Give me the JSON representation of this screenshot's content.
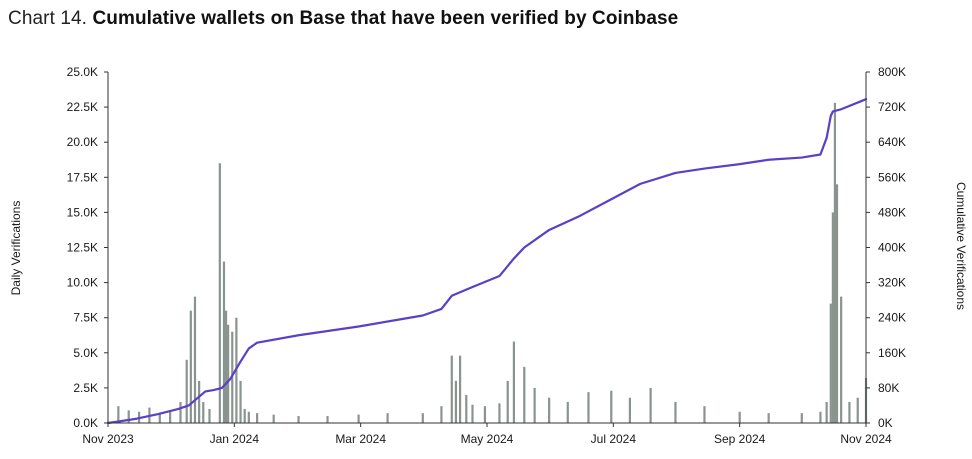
{
  "title": {
    "prefix": "Chart 14.",
    "main": "Cumulative wallets on Base that have been verified by Coinbase"
  },
  "chart_data": {
    "type": "bar+line",
    "title": "Chart 14. Cumulative wallets on Base that have been verified by Coinbase",
    "ylabel_left": "Daily Verifications",
    "ylabel_right": "Cumulative Verifications",
    "x_tick_labels": [
      "Nov 2023",
      "Jan 2024",
      "Mar 2024",
      "May 2024",
      "Jul 2024",
      "Sep 2024",
      "Nov 2024"
    ],
    "y_left_tick_labels": [
      "0.0K",
      "2.5K",
      "5.0K",
      "7.5K",
      "10.0K",
      "12.5K",
      "15.0K",
      "17.5K",
      "20.0K",
      "22.5K",
      "25.0K"
    ],
    "y_right_tick_labels": [
      "0K",
      "80K",
      "160K",
      "240K",
      "320K",
      "400K",
      "480K",
      "560K",
      "640K",
      "720K",
      "800K"
    ],
    "y_left_lim": [
      0,
      25000
    ],
    "y_right_lim": [
      0,
      800000
    ],
    "x_range": [
      "2023-11-01",
      "2024-11-01"
    ],
    "grid": false,
    "colors": {
      "bars": "#8a948f",
      "line": "#5b3fc6",
      "axis": "#333333"
    },
    "series": [
      {
        "name": "Daily Verifications",
        "type": "bar",
        "axis": "left",
        "x": [
          "2023-11-01",
          "2023-11-06",
          "2023-11-11",
          "2023-11-16",
          "2023-11-21",
          "2023-11-26",
          "2023-12-01",
          "2023-12-06",
          "2023-12-09",
          "2023-12-11",
          "2023-12-13",
          "2023-12-15",
          "2023-12-17",
          "2023-12-20",
          "2023-12-25",
          "2023-12-27",
          "2023-12-28",
          "2023-12-29",
          "2023-12-31",
          "2024-01-02",
          "2024-01-04",
          "2024-01-06",
          "2024-01-08",
          "2024-01-12",
          "2024-01-20",
          "2024-02-01",
          "2024-02-15",
          "2024-03-01",
          "2024-03-15",
          "2024-04-01",
          "2024-04-10",
          "2024-04-15",
          "2024-04-17",
          "2024-04-19",
          "2024-04-22",
          "2024-04-25",
          "2024-05-01",
          "2024-05-08",
          "2024-05-12",
          "2024-05-15",
          "2024-05-20",
          "2024-05-25",
          "2024-06-01",
          "2024-06-10",
          "2024-06-20",
          "2024-07-01",
          "2024-07-10",
          "2024-07-20",
          "2024-08-01",
          "2024-08-15",
          "2024-09-01",
          "2024-09-15",
          "2024-10-01",
          "2024-10-10",
          "2024-10-13",
          "2024-10-15",
          "2024-10-16",
          "2024-10-17",
          "2024-10-18",
          "2024-10-20",
          "2024-10-24",
          "2024-10-28",
          "2024-11-01"
        ],
        "values": [
          100,
          1200,
          900,
          800,
          1100,
          700,
          800,
          1500,
          4500,
          8000,
          9000,
          3000,
          1500,
          1000,
          18500,
          11500,
          8000,
          7000,
          6500,
          7500,
          3000,
          1000,
          800,
          700,
          600,
          500,
          500,
          600,
          700,
          700,
          1200,
          4800,
          3000,
          4800,
          2000,
          1300,
          1200,
          1400,
          3000,
          5800,
          4000,
          2500,
          1800,
          1500,
          2200,
          2300,
          1800,
          2500,
          1500,
          1200,
          800,
          700,
          700,
          800,
          1500,
          8500,
          15000,
          22800,
          17000,
          9000,
          1500,
          1800,
          3200
        ]
      },
      {
        "name": "Cumulative Verifications",
        "type": "line",
        "axis": "right",
        "x": [
          "2023-11-01",
          "2023-11-07",
          "2023-11-15",
          "2023-11-25",
          "2023-12-05",
          "2023-12-10",
          "2023-12-14",
          "2023-12-18",
          "2023-12-22",
          "2023-12-26",
          "2023-12-30",
          "2024-01-04",
          "2024-01-08",
          "2024-01-12",
          "2024-02-01",
          "2024-03-01",
          "2024-04-01",
          "2024-04-10",
          "2024-04-15",
          "2024-04-25",
          "2024-05-08",
          "2024-05-15",
          "2024-05-20",
          "2024-06-01",
          "2024-06-15",
          "2024-07-01",
          "2024-07-15",
          "2024-08-01",
          "2024-08-15",
          "2024-09-01",
          "2024-09-15",
          "2024-10-01",
          "2024-10-10",
          "2024-10-13",
          "2024-10-15",
          "2024-10-16",
          "2024-10-20",
          "2024-11-01"
        ],
        "values": [
          0,
          4000,
          10000,
          20000,
          32000,
          40000,
          56000,
          72000,
          75000,
          80000,
          100000,
          140000,
          170000,
          183000,
          200000,
          220000,
          245000,
          260000,
          290000,
          310000,
          335000,
          375000,
          400000,
          440000,
          470000,
          510000,
          545000,
          570000,
          580000,
          590000,
          600000,
          605000,
          612000,
          650000,
          700000,
          710000,
          715000,
          738000
        ]
      }
    ]
  }
}
